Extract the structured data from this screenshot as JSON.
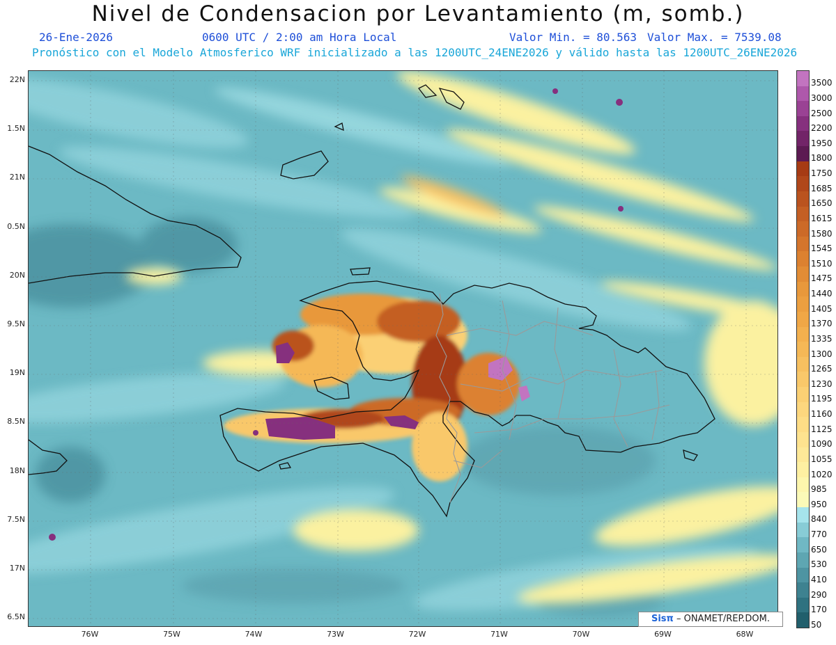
{
  "header": {
    "title": "Nivel de Condensacion por Levantamiento (m, somb.)",
    "date": "26-Ene-2026",
    "time": "0600 UTC / 2:00 am Hora Local",
    "vmin": "Valor Min. = 80.563",
    "vmax": "Valor Max. = 7539.08",
    "model": "Pronóstico con el Modelo Atmosferico WRF inicializado a las 1200UTC_24ENE2026 y válido hasta las  1200UTC_26ENE2026"
  },
  "lat_labels": [
    "22N",
    "1.5N",
    "21N",
    "0.5N",
    "20N",
    "9.5N",
    "19N",
    "8.5N",
    "18N",
    "7.5N",
    "17N",
    "6.5N"
  ],
  "lon_labels": [
    "76W",
    "75W",
    "74W",
    "73W",
    "72W",
    "71W",
    "70W",
    "69W",
    "68W"
  ],
  "colorbar": {
    "labels": [
      "3500",
      "3000",
      "2500",
      "2200",
      "1950",
      "1800",
      "1750",
      "1685",
      "1650",
      "1615",
      "1580",
      "1545",
      "1510",
      "1475",
      "1440",
      "1405",
      "1370",
      "1335",
      "1300",
      "1265",
      "1230",
      "1195",
      "1160",
      "1125",
      "1090",
      "1055",
      "1020",
      "985",
      "950",
      "840",
      "770",
      "650",
      "530",
      "410",
      "290",
      "170",
      "50"
    ],
    "colors": [
      "#c274c0",
      "#ae58ab",
      "#9a4294",
      "#86307e",
      "#722468",
      "#5c1a52",
      "#a63b14",
      "#b0471a",
      "#ba531f",
      "#c45f24",
      "#cc6a28",
      "#d4752c",
      "#dc8130",
      "#e28c35",
      "#e8983b",
      "#ec9f40",
      "#f0a746",
      "#f3b04e",
      "#f5b856",
      "#f7c060",
      "#f9c86a",
      "#fbd074",
      "#fdd77e",
      "#fedd86",
      "#fee38f",
      "#fee998",
      "#fef0a2",
      "#fdf6ad",
      "#fbfab8",
      "#a6e4ec",
      "#88ccd6",
      "#70b8c4",
      "#5ea6b2",
      "#4e94a2",
      "#3e8290",
      "#2f7280",
      "#215f6c"
    ]
  },
  "credit": {
    "logo": "Sisπ",
    "text": "– ONAMET/REP.DOM."
  }
}
